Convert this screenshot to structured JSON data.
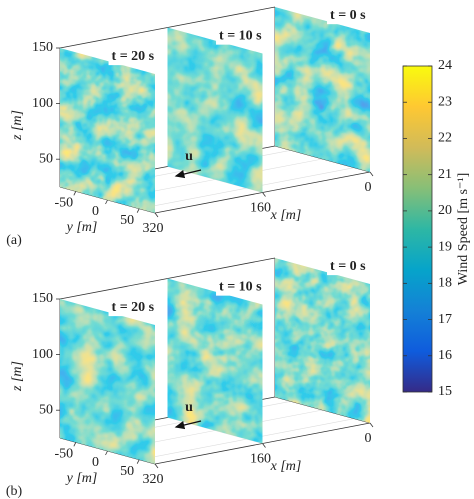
{
  "chart_data": [
    {
      "type": "slices",
      "panel_label": "(a)",
      "slice_labels": [
        "t = 20 s",
        "t = 10 s",
        "t = 0 s"
      ],
      "slice_x": [
        320,
        160,
        0
      ],
      "arrow_label": "u",
      "xlabel": "x [m]",
      "ylabel": "y [m]",
      "zlabel": "z [m]",
      "xlim": [
        320,
        0
      ],
      "xticks": [
        320,
        160,
        0
      ],
      "ylim": [
        -75,
        75
      ],
      "yticks": [
        -50,
        0,
        50
      ],
      "zlim": [
        25,
        150
      ],
      "zticks": [
        50,
        100,
        150
      ]
    },
    {
      "type": "slices",
      "panel_label": "(b)",
      "slice_labels": [
        "t = 20 s",
        "t = 10 s",
        "t = 0 s"
      ],
      "slice_x": [
        320,
        160,
        0
      ],
      "arrow_label": "u",
      "xlabel": "x [m]",
      "ylabel": "y [m]",
      "zlabel": "z [m]",
      "xlim": [
        320,
        0
      ],
      "xticks": [
        320,
        160,
        0
      ],
      "ylim": [
        -75,
        75
      ],
      "yticks": [
        -50,
        0,
        50
      ],
      "zlim": [
        25,
        150
      ],
      "zticks": [
        50,
        100,
        150
      ]
    },
    {
      "type": "colorbar",
      "label": "Wind Speed [m s⁻¹]",
      "ylim": [
        15,
        24
      ],
      "yticks": [
        15,
        16,
        17,
        18,
        19,
        20,
        21,
        22,
        23,
        24
      ]
    }
  ]
}
